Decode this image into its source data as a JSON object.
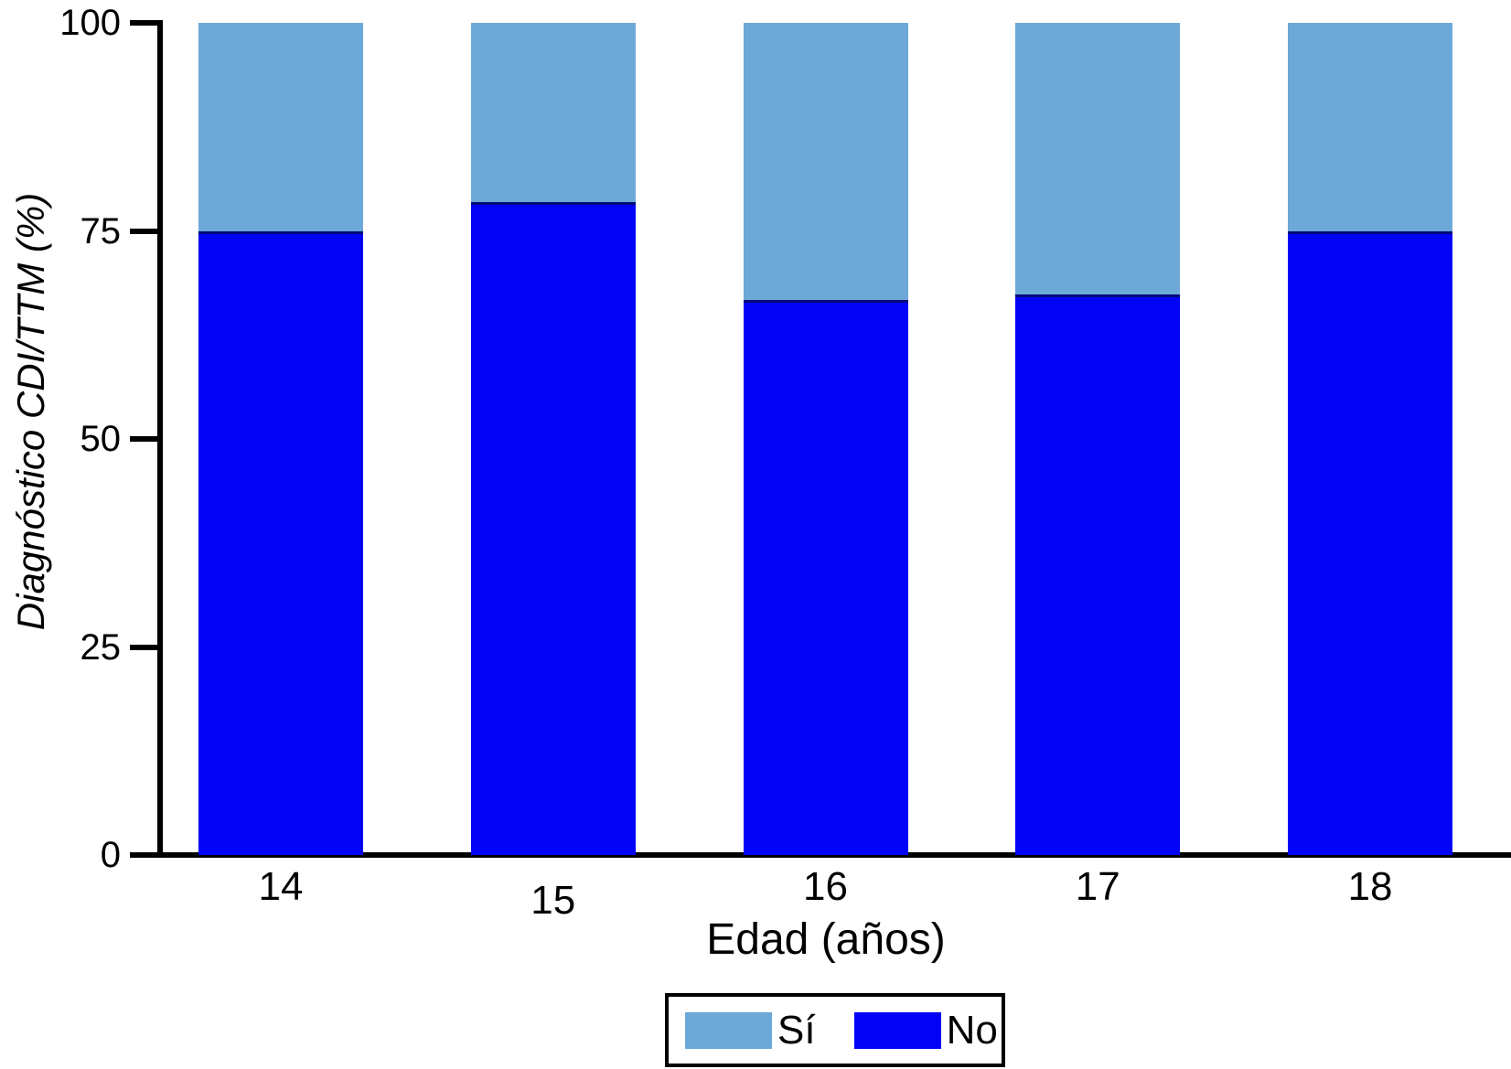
{
  "chart_data": {
    "type": "bar",
    "stacked": true,
    "title": "",
    "categories": [
      "14",
      "15",
      "16",
      "17",
      "18"
    ],
    "series": [
      {
        "name": "Sí",
        "color": "#6CA8D8",
        "position": "top",
        "values": [
          25,
          21.5,
          33.3,
          32.6,
          25
        ]
      },
      {
        "name": "No",
        "color": "#0202F6",
        "position": "bottom",
        "values": [
          75,
          78.5,
          66.7,
          67.4,
          75
        ]
      }
    ],
    "xlabel": "Edad (años)",
    "ylabel": "Diagnóstico CDI/TTM (%)",
    "ylim": [
      0,
      100
    ],
    "y_ticks": [
      0,
      25,
      50,
      75,
      100
    ],
    "grid": false,
    "legend_position": "bottom",
    "x_tick_dy": [
      0,
      15,
      0,
      0,
      0
    ],
    "colors": {
      "axis": "#000000",
      "background": "#ffffff",
      "segment_boundary_line": "#000a78"
    }
  }
}
